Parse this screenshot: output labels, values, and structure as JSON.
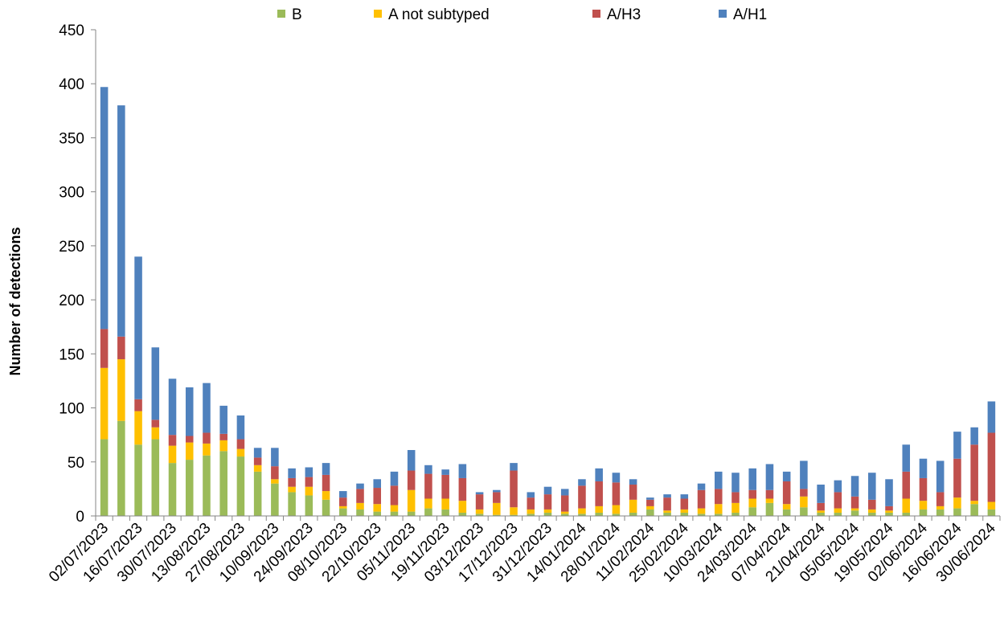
{
  "chart_data": {
    "type": "bar",
    "stacked": true,
    "title": "",
    "xlabel": "",
    "ylabel": "Number of detections",
    "ylim": [
      0,
      450
    ],
    "yticks": [
      0,
      50,
      100,
      150,
      200,
      250,
      300,
      350,
      400,
      450
    ],
    "grid": false,
    "legend_position": "top",
    "categories": [
      "02/07/2023",
      "09/07/2023",
      "16/07/2023",
      "23/07/2023",
      "30/07/2023",
      "06/08/2023",
      "13/08/2023",
      "20/08/2023",
      "27/08/2023",
      "03/09/2023",
      "10/09/2023",
      "17/09/2023",
      "24/09/2023",
      "01/10/2023",
      "08/10/2023",
      "15/10/2023",
      "22/10/2023",
      "29/10/2023",
      "05/11/2023",
      "12/11/2023",
      "19/11/2023",
      "26/11/2023",
      "03/12/2023",
      "10/12/2023",
      "17/12/2023",
      "24/12/2023",
      "31/12/2023",
      "07/01/2024",
      "14/01/2024",
      "21/01/2024",
      "28/01/2024",
      "04/02/2024",
      "11/02/2024",
      "18/02/2024",
      "25/02/2024",
      "03/03/2024",
      "10/03/2024",
      "17/03/2024",
      "24/03/2024",
      "31/03/2024",
      "07/04/2024",
      "14/04/2024",
      "21/04/2024",
      "28/04/2024",
      "05/05/2024",
      "12/05/2024",
      "19/05/2024",
      "26/05/2024",
      "02/06/2024",
      "09/06/2024",
      "16/06/2024",
      "23/06/2024",
      "30/06/2024"
    ],
    "labeled_categories": [
      "02/07/2023",
      "16/07/2023",
      "30/07/2023",
      "13/08/2023",
      "27/08/2023",
      "10/09/2023",
      "24/09/2023",
      "08/10/2023",
      "22/10/2023",
      "05/11/2023",
      "19/11/2023",
      "03/12/2023",
      "17/12/2023",
      "31/12/2023",
      "14/01/2024",
      "28/01/2024",
      "11/02/2024",
      "25/02/2024",
      "10/03/2024",
      "24/03/2024",
      "07/04/2024",
      "21/04/2024",
      "05/05/2024",
      "19/05/2024",
      "02/06/2024",
      "16/06/2024",
      "30/06/2024"
    ],
    "series": [
      {
        "name": "B",
        "color": "#9BBB59",
        "values": [
          71,
          88,
          66,
          71,
          49,
          52,
          56,
          60,
          55,
          41,
          30,
          22,
          19,
          15,
          7,
          6,
          4,
          4,
          4,
          7,
          6,
          3,
          2,
          1,
          1,
          2,
          3,
          2,
          2,
          3,
          2,
          3,
          6,
          3,
          3,
          2,
          2,
          3,
          8,
          12,
          6,
          8,
          3,
          3,
          5,
          3,
          3,
          3,
          6,
          6,
          7,
          11,
          6
        ]
      },
      {
        "name": "A not subtyped",
        "color": "#FFC000",
        "values": [
          66,
          57,
          31,
          11,
          16,
          16,
          11,
          10,
          7,
          6,
          4,
          5,
          8,
          8,
          2,
          6,
          7,
          6,
          20,
          9,
          10,
          11,
          4,
          11,
          7,
          4,
          3,
          2,
          5,
          6,
          8,
          12,
          3,
          2,
          3,
          5,
          9,
          9,
          8,
          4,
          5,
          10,
          2,
          4,
          2,
          3,
          2,
          13,
          8,
          3,
          10,
          3,
          7
        ]
      },
      {
        "name": "A/H3",
        "color": "#C0504D",
        "values": [
          36,
          21,
          11,
          7,
          10,
          6,
          10,
          6,
          9,
          7,
          12,
          8,
          9,
          15,
          8,
          13,
          15,
          18,
          18,
          23,
          22,
          21,
          14,
          10,
          34,
          11,
          14,
          15,
          21,
          23,
          21,
          14,
          6,
          12,
          10,
          17,
          14,
          10,
          8,
          8,
          21,
          7,
          7,
          15,
          11,
          9,
          4,
          25,
          21,
          13,
          36,
          52,
          64
        ]
      },
      {
        "name": "A/H1",
        "color": "#4F81BD",
        "values": [
          224,
          214,
          132,
          67,
          52,
          45,
          46,
          26,
          22,
          9,
          17,
          9,
          9,
          11,
          6,
          5,
          8,
          13,
          19,
          8,
          5,
          13,
          2,
          2,
          7,
          5,
          7,
          6,
          6,
          12,
          9,
          5,
          2,
          3,
          4,
          6,
          16,
          18,
          20,
          24,
          9,
          26,
          17,
          11,
          19,
          25,
          25,
          25,
          18,
          29,
          25,
          16,
          29
        ]
      }
    ]
  }
}
